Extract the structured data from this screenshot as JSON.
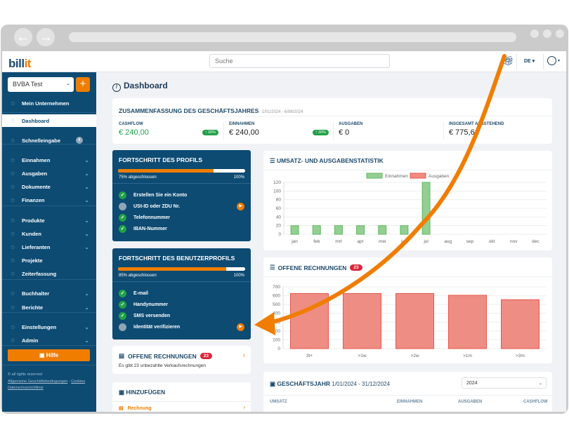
{
  "header": {
    "logo_text": "bill",
    "logo_accent": "it",
    "search_placeholder": "Suche",
    "language": "DE"
  },
  "sidebar": {
    "company": "BVBA Test",
    "company_plus": "+",
    "items": [
      {
        "label": "Mein Unternehmen",
        "icon": "building-icon"
      },
      {
        "label": "Dashboard",
        "icon": "gauge-icon",
        "active": true
      },
      {
        "label": "Schnelleingabe",
        "icon": "camera-icon",
        "badge": "6"
      },
      {
        "label": "Einnahmen",
        "icon": "arrow-down-circle-icon",
        "chevron": true
      },
      {
        "label": "Ausgaben",
        "icon": "arrow-up-circle-icon",
        "chevron": true
      },
      {
        "label": "Dokumente",
        "icon": "documents-icon",
        "chevron": true
      },
      {
        "label": "Finanzen",
        "icon": "bank-icon",
        "chevron": true
      },
      {
        "label": "Produkte",
        "icon": "box-icon",
        "chevron": true
      },
      {
        "label": "Kunden",
        "icon": "users-icon",
        "chevron": true
      },
      {
        "label": "Lieferanten",
        "icon": "boxes-icon",
        "chevron": true
      },
      {
        "label": "Projekte",
        "icon": "folder-icon"
      },
      {
        "label": "Zeiterfassung",
        "icon": "clock-icon"
      },
      {
        "label": "Buchhalter",
        "icon": "upload-icon",
        "chevron": true
      },
      {
        "label": "Berichte",
        "icon": "report-icon",
        "chevron": true
      },
      {
        "label": "Einstellungen",
        "icon": "gears-icon",
        "chevron": true
      },
      {
        "label": "Admin",
        "icon": "admin-icon",
        "chevron": true
      }
    ],
    "help": "Hilfe",
    "footer": {
      "rights": "© all rights reserved",
      "terms": "Allgemeine Geschäftsbedingungen",
      "sep": " - ",
      "cookies": "Cookies",
      "privacy": "Datenschutzrichtlinie"
    }
  },
  "main": {
    "title": "Dashboard",
    "summary": {
      "title": "ZUSAMMENFASSUNG DES GESCHÄFTSJAHRES",
      "period": "1/01/2024 - 6/08/2024",
      "stats": [
        {
          "label": "CASHFLOW",
          "value": "€ 240,00",
          "change": "↑ 20%",
          "color": "#21a147"
        },
        {
          "label": "EINNAHMEN",
          "value": "€ 240,00",
          "change": "↑ 20%"
        },
        {
          "label": "AUSGABEN",
          "value": "€ 0"
        },
        {
          "label": "INSGESAMT AUSSTEHEND",
          "value": "€ 775,61"
        }
      ]
    },
    "profile": {
      "title": "FORTSCHRITT DES PROFILS",
      "progress": 75,
      "progress_label": "75% abgeschlossen",
      "max_label": "100%",
      "items": [
        {
          "label": "Erstellen Sie ein Konto",
          "done": true
        },
        {
          "label": "USt-ID oder ZDU Nr.",
          "done": false
        },
        {
          "label": "Telefonnummer",
          "done": true
        },
        {
          "label": "IBAN-Nummer",
          "done": true
        }
      ]
    },
    "user_profile": {
      "title": "FORTSCHRITT DES BENUTZERPROFILS",
      "progress": 85,
      "progress_label": "85% abgeschlossen",
      "max_label": "100%",
      "items": [
        {
          "label": "E-mail",
          "done": true
        },
        {
          "label": "Handynummer",
          "done": true
        },
        {
          "label": "SMS versenden",
          "done": true
        },
        {
          "label": "Identität verifizieren",
          "done": false
        }
      ]
    },
    "open_invoices_card": {
      "title": "OFFENE RECHNUNGEN",
      "count": "23",
      "text": "Es gibt 23 unbezahlte Verkaufsrechnungen"
    },
    "add": {
      "title": "HINZUFÜGEN",
      "items": [
        {
          "label": "Rechnung"
        }
      ]
    },
    "fiscal": {
      "title": "GESCHÄFTSJAHR",
      "period": "1/01/2024 - 31/12/2024",
      "year": "2024",
      "columns": [
        "UMSATZ",
        "EINNAHMEN",
        "AUSGABEN",
        "CASHFLOW"
      ]
    }
  },
  "chart_data": [
    {
      "type": "bar",
      "title": "UMSATZ- UND AUSGABENSTATISTIK",
      "categories": [
        "jan",
        "feb",
        "mrt",
        "apr",
        "mei",
        "jun",
        "jul",
        "aug",
        "sep",
        "okt",
        "nov",
        "dec"
      ],
      "series": [
        {
          "name": "Einnahmen",
          "color": "#93cf93",
          "values": [
            20,
            20,
            20,
            20,
            20,
            20,
            120,
            0,
            0,
            0,
            0,
            0
          ]
        },
        {
          "name": "Ausgaben",
          "color": "#f28b82",
          "values": [
            0,
            0,
            0,
            0,
            0,
            0,
            0,
            0,
            0,
            0,
            0,
            0
          ]
        }
      ],
      "ylim": [
        0,
        120
      ],
      "yticks": [
        0,
        20,
        40,
        60,
        80,
        100,
        120
      ],
      "legend": "top",
      "grid": true
    },
    {
      "type": "bar",
      "title": "OFFENE RECHNUNGEN",
      "badge": "23",
      "categories": [
        "3t+",
        ">1w",
        ">2w",
        ">1m",
        ">3m"
      ],
      "series": [
        {
          "color": "#ee8d84",
          "values": [
            625,
            625,
            625,
            605,
            555
          ]
        }
      ],
      "ylim": [
        0,
        700
      ],
      "yticks": [
        0,
        100,
        200,
        300,
        400,
        500,
        600,
        700
      ],
      "grid": true
    }
  ]
}
